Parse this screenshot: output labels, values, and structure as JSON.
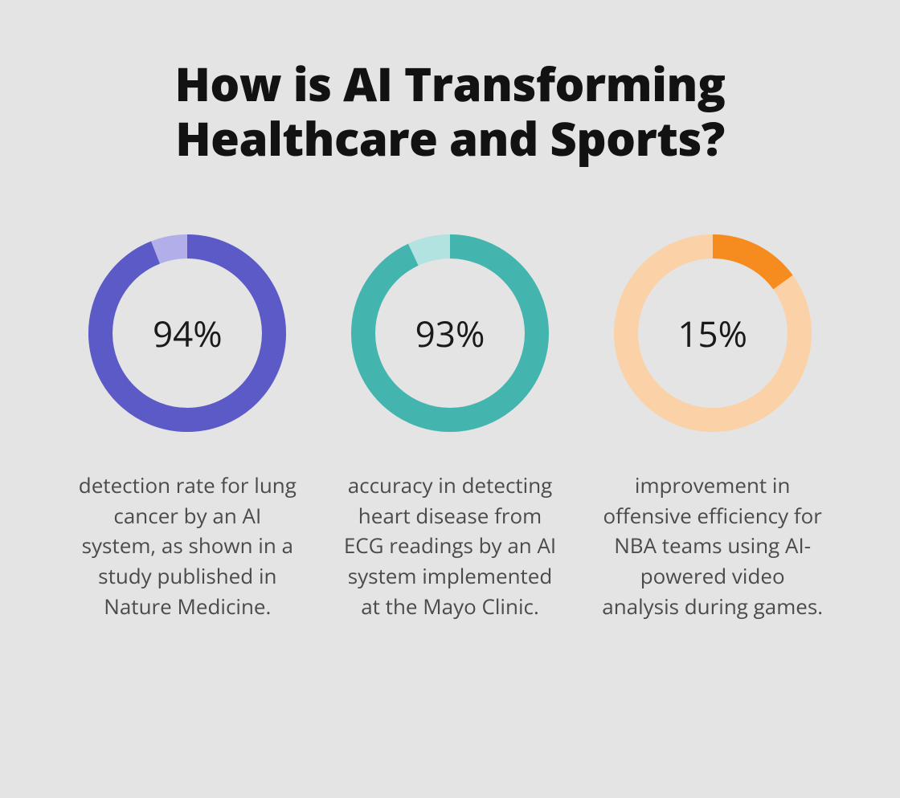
{
  "background_color": "#e3e4e3",
  "title": {
    "text": "How is AI Transforming Healthcare and Sports?",
    "fontsize": 58,
    "color": "#121212",
    "font_weight": 800
  },
  "donut": {
    "outer_radius": 123,
    "stroke_width": 30,
    "start_angle_deg": 0
  },
  "percent_label_fontsize": 44,
  "caption_fontsize": 26,
  "caption_color": "#4b4b4b",
  "stats": [
    {
      "value": 94,
      "value_label": "94%",
      "track_color": "#b1aee9",
      "fill_color": "#5b5ac6",
      "caption": "detection rate for lung cancer by an AI system, as shown in a study published in Nature Medicine."
    },
    {
      "value": 93,
      "value_label": "93%",
      "track_color": "#b2e3e1",
      "fill_color": "#43b5ae",
      "caption": "accuracy in detecting heart disease from ECG readings by an AI system implemented at the Mayo Clinic."
    },
    {
      "value": 15,
      "value_label": "15%",
      "track_color": "#fbd1a7",
      "fill_color": "#f68c1f",
      "caption": "improvement in offensive efficiency for NBA teams using AI-powered video analysis during games."
    }
  ]
}
